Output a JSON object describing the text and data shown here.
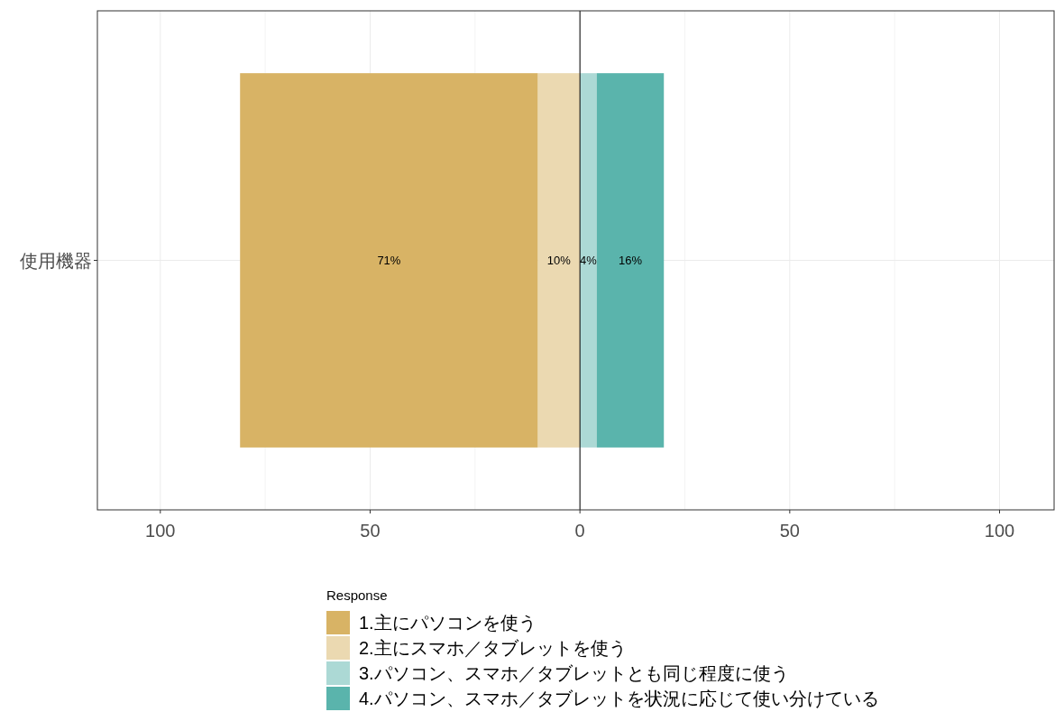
{
  "chart_data": {
    "type": "bar",
    "orientation": "horizontal",
    "categories": [
      "使用機器"
    ],
    "series": [
      {
        "name": "1.主にパソコンを使う",
        "color": "#d8b365",
        "values": [
          71
        ],
        "base": [
          -81
        ],
        "value_labels": [
          "71%"
        ]
      },
      {
        "name": "2.主にスマホ／タブレットを使う",
        "color": "#ebd9b1",
        "values": [
          10
        ],
        "base": [
          -10
        ],
        "value_labels": [
          "10%"
        ]
      },
      {
        "name": "3.パソコン、スマホ／タブレットとも同じ程度に使う",
        "color": "#acd9d5",
        "values": [
          4
        ],
        "base": [
          0
        ],
        "value_labels": [
          "4%"
        ]
      },
      {
        "name": "4.パソコン、スマホ／タブレットを状況に応じて使い分けている",
        "color": "#5ab4ac",
        "values": [
          16
        ],
        "base": [
          4
        ],
        "value_labels": [
          "16%"
        ]
      }
    ],
    "xlim": [
      -115,
      113
    ],
    "xticks": [
      {
        "value": -100,
        "label": "100"
      },
      {
        "value": -50,
        "label": "50"
      },
      0,
      50,
      100
    ],
    "ref_lines": [
      {
        "axis": "x",
        "value": 0,
        "color": "#000000"
      }
    ],
    "grid": true,
    "legend": "bottom",
    "legend_title": "Response"
  }
}
